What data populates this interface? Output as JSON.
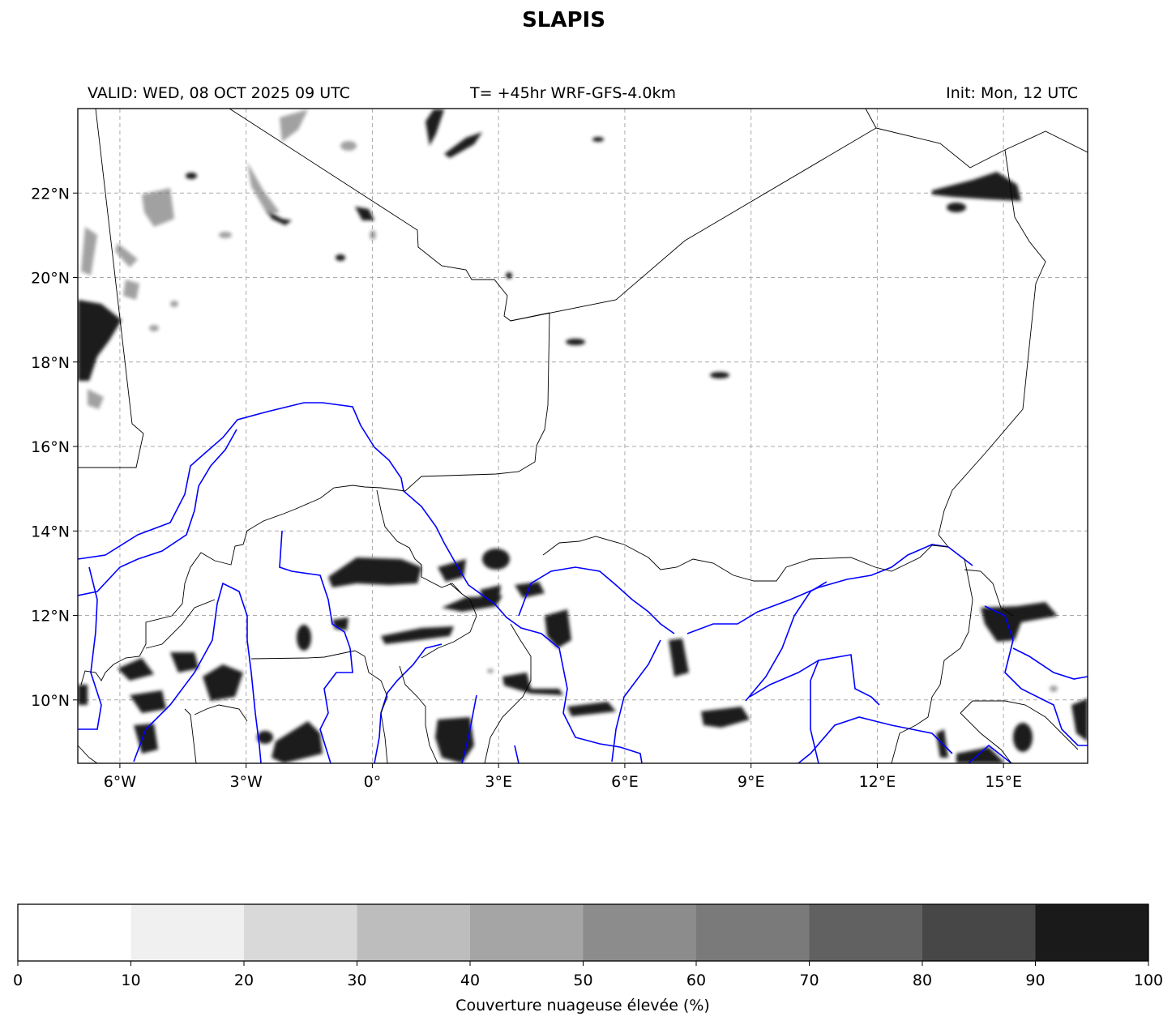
{
  "title": "SLAPIS",
  "subtitle": {
    "valid": "VALID: WED, 08 OCT 2025 09 UTC",
    "forecast": "T= +45hr WRF-GFS-4.0km",
    "init": "Init: Mon, 12 UTC"
  },
  "map": {
    "lon_range": [
      -7,
      17
    ],
    "lat_range": [
      8.5,
      24
    ],
    "lon_ticks": [
      {
        "value": -6,
        "label": "6°W"
      },
      {
        "value": -3,
        "label": "3°W"
      },
      {
        "value": 0,
        "label": "0°"
      },
      {
        "value": 3,
        "label": "3°E"
      },
      {
        "value": 6,
        "label": "6°E"
      },
      {
        "value": 9,
        "label": "9°E"
      },
      {
        "value": 12,
        "label": "12°E"
      },
      {
        "value": 15,
        "label": "15°E"
      }
    ],
    "lat_ticks": [
      {
        "value": 10,
        "label": "10°N"
      },
      {
        "value": 12,
        "label": "12°N"
      },
      {
        "value": 14,
        "label": "14°N"
      },
      {
        "value": 16,
        "label": "16°N"
      },
      {
        "value": 18,
        "label": "18°N"
      },
      {
        "value": 20,
        "label": "20°N"
      },
      {
        "value": 22,
        "label": "22°N"
      }
    ],
    "grid": true,
    "river_color": "#0000ff",
    "border_color": "#000000"
  },
  "colorbar": {
    "label": "Couverture nuageuse élevée (%)",
    "ticks": [
      "0",
      "10",
      "20",
      "30",
      "40",
      "50",
      "60",
      "70",
      "80",
      "90",
      "100"
    ],
    "colors": [
      "#ffffff",
      "#f0f0f0",
      "#d9d9d9",
      "#bdbdbd",
      "#a5a5a5",
      "#8c8c8c",
      "#7a7a7a",
      "#616161",
      "#474747",
      "#1a1a1a"
    ]
  }
}
